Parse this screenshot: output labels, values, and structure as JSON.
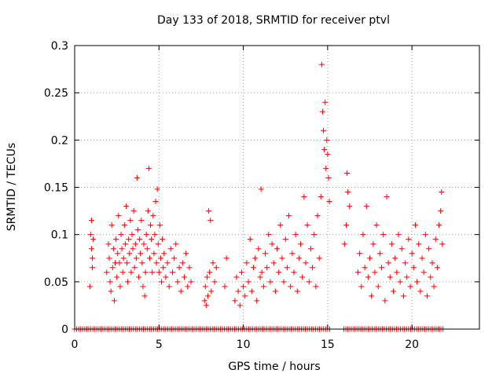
{
  "chart_data": {
    "type": "scatter",
    "title": "Day 133 of 2018, SRMTID for receiver ptvl",
    "xlabel": "GPS time / hours",
    "ylabel": "SRMTID / TECUs",
    "xlim": [
      0,
      24
    ],
    "ylim": [
      0,
      0.3
    ],
    "xticks": [
      0,
      5,
      10,
      15,
      20
    ],
    "xtick_labels": [
      "0",
      "5",
      "10",
      "15",
      "20"
    ],
    "yticks": [
      0,
      0.05,
      0.1,
      0.15,
      0.2,
      0.25,
      0.3
    ],
    "ytick_labels": [
      "0",
      "0.05",
      "0.1",
      "0.15",
      "0.2",
      "0.25",
      "0.3"
    ],
    "grid": true,
    "marker": "+",
    "color": "#ff0000",
    "series": [
      {
        "name": "SRMTID",
        "points": [
          [
            0.9,
            0.045
          ],
          [
            0.95,
            0.1
          ],
          [
            1.0,
            0.115
          ],
          [
            1.0,
            0.085
          ],
          [
            1.05,
            0.075
          ],
          [
            1.05,
            0.065
          ],
          [
            1.1,
            0.095
          ],
          [
            1.9,
            0.06
          ],
          [
            2.0,
            0.09
          ],
          [
            2.05,
            0.075
          ],
          [
            2.1,
            0.05
          ],
          [
            2.15,
            0.04
          ],
          [
            2.2,
            0.11
          ],
          [
            2.25,
            0.065
          ],
          [
            2.3,
            0.085
          ],
          [
            2.35,
            0.03
          ],
          [
            2.4,
            0.07
          ],
          [
            2.45,
            0.095
          ],
          [
            2.5,
            0.055
          ],
          [
            2.55,
            0.08
          ],
          [
            2.6,
            0.12
          ],
          [
            2.65,
            0.07
          ],
          [
            2.7,
            0.045
          ],
          [
            2.75,
            0.1
          ],
          [
            2.8,
            0.085
          ],
          [
            2.85,
            0.06
          ],
          [
            2.9,
            0.075
          ],
          [
            2.95,
            0.11
          ],
          [
            3.0,
            0.09
          ],
          [
            3.05,
            0.13
          ],
          [
            3.1,
            0.07
          ],
          [
            3.15,
            0.05
          ],
          [
            3.2,
            0.095
          ],
          [
            3.25,
            0.08
          ],
          [
            3.3,
            0.115
          ],
          [
            3.35,
            0.06
          ],
          [
            3.4,
            0.1
          ],
          [
            3.45,
            0.085
          ],
          [
            3.5,
            0.125
          ],
          [
            3.55,
            0.065
          ],
          [
            3.6,
            0.09
          ],
          [
            3.65,
            0.075
          ],
          [
            3.7,
            0.16
          ],
          [
            3.75,
            0.105
          ],
          [
            3.8,
            0.055
          ],
          [
            3.85,
            0.095
          ],
          [
            3.9,
            0.08
          ],
          [
            3.95,
            0.115
          ],
          [
            4.0,
            0.07
          ],
          [
            4.05,
            0.045
          ],
          [
            4.1,
            0.09
          ],
          [
            4.15,
            0.035
          ],
          [
            4.2,
            0.06
          ],
          [
            4.25,
            0.1
          ],
          [
            4.3,
            0.085
          ],
          [
            4.35,
            0.125
          ],
          [
            4.4,
            0.17
          ],
          [
            4.45,
            0.075
          ],
          [
            4.5,
            0.11
          ],
          [
            4.55,
            0.095
          ],
          [
            4.6,
            0.06
          ],
          [
            4.65,
            0.12
          ],
          [
            4.7,
            0.08
          ],
          [
            4.75,
            0.1
          ],
          [
            4.8,
            0.135
          ],
          [
            4.85,
            0.07
          ],
          [
            4.9,
            0.148
          ],
          [
            4.95,
            0.09
          ],
          [
            5.0,
            0.06
          ],
          [
            5.05,
            0.11
          ],
          [
            5.1,
            0.075
          ],
          [
            5.15,
            0.05
          ],
          [
            5.2,
            0.095
          ],
          [
            5.25,
            0.065
          ],
          [
            5.3,
            0.08
          ],
          [
            5.4,
            0.055
          ],
          [
            5.5,
            0.07
          ],
          [
            5.6,
            0.045
          ],
          [
            5.7,
            0.085
          ],
          [
            5.8,
            0.06
          ],
          [
            5.9,
            0.075
          ],
          [
            6.0,
            0.09
          ],
          [
            6.1,
            0.05
          ],
          [
            6.2,
            0.065
          ],
          [
            6.3,
            0.04
          ],
          [
            6.4,
            0.07
          ],
          [
            6.5,
            0.055
          ],
          [
            6.6,
            0.08
          ],
          [
            6.7,
            0.045
          ],
          [
            6.8,
            0.065
          ],
          [
            6.9,
            0.05
          ],
          [
            7.7,
            0.03
          ],
          [
            7.75,
            0.045
          ],
          [
            7.8,
            0.025
          ],
          [
            7.85,
            0.055
          ],
          [
            7.9,
            0.035
          ],
          [
            7.95,
            0.125
          ],
          [
            8.0,
            0.06
          ],
          [
            8.05,
            0.115
          ],
          [
            8.1,
            0.04
          ],
          [
            8.2,
            0.07
          ],
          [
            8.3,
            0.05
          ],
          [
            8.4,
            0.065
          ],
          [
            8.9,
            0.045
          ],
          [
            9.0,
            0.075
          ],
          [
            9.5,
            0.03
          ],
          [
            9.6,
            0.055
          ],
          [
            9.7,
            0.04
          ],
          [
            9.8,
            0.025
          ],
          [
            9.9,
            0.06
          ],
          [
            10.0,
            0.045
          ],
          [
            10.1,
            0.035
          ],
          [
            10.2,
            0.07
          ],
          [
            10.3,
            0.05
          ],
          [
            10.4,
            0.095
          ],
          [
            10.5,
            0.04
          ],
          [
            10.6,
            0.065
          ],
          [
            10.7,
            0.075
          ],
          [
            10.8,
            0.03
          ],
          [
            10.9,
            0.085
          ],
          [
            11.0,
            0.055
          ],
          [
            11.05,
            0.148
          ],
          [
            11.1,
            0.06
          ],
          [
            11.2,
            0.045
          ],
          [
            11.3,
            0.08
          ],
          [
            11.4,
            0.065
          ],
          [
            11.5,
            0.1
          ],
          [
            11.6,
            0.05
          ],
          [
            11.7,
            0.09
          ],
          [
            11.8,
            0.07
          ],
          [
            11.9,
            0.04
          ],
          [
            12.0,
            0.085
          ],
          [
            12.1,
            0.06
          ],
          [
            12.2,
            0.11
          ],
          [
            12.3,
            0.075
          ],
          [
            12.4,
            0.05
          ],
          [
            12.5,
            0.095
          ],
          [
            12.6,
            0.065
          ],
          [
            12.7,
            0.12
          ],
          [
            12.8,
            0.045
          ],
          [
            12.9,
            0.08
          ],
          [
            13.0,
            0.06
          ],
          [
            13.1,
            0.1
          ],
          [
            13.2,
            0.04
          ],
          [
            13.3,
            0.075
          ],
          [
            13.4,
            0.09
          ],
          [
            13.5,
            0.055
          ],
          [
            13.6,
            0.14
          ],
          [
            13.7,
            0.07
          ],
          [
            13.8,
            0.11
          ],
          [
            13.9,
            0.05
          ],
          [
            14.0,
            0.085
          ],
          [
            14.1,
            0.065
          ],
          [
            14.2,
            0.1
          ],
          [
            14.3,
            0.045
          ],
          [
            14.4,
            0.12
          ],
          [
            14.5,
            0.075
          ],
          [
            14.6,
            0.14
          ],
          [
            14.65,
            0.28
          ],
          [
            14.7,
            0.23
          ],
          [
            14.75,
            0.21
          ],
          [
            14.8,
            0.19
          ],
          [
            14.85,
            0.24
          ],
          [
            14.9,
            0.17
          ],
          [
            14.95,
            0.2
          ],
          [
            15.0,
            0.185
          ],
          [
            15.05,
            0.16
          ],
          [
            15.1,
            0.135
          ],
          [
            16.0,
            0.09
          ],
          [
            16.1,
            0.11
          ],
          [
            16.15,
            0.165
          ],
          [
            16.2,
            0.145
          ],
          [
            16.3,
            0.13
          ],
          [
            16.8,
            0.06
          ],
          [
            16.9,
            0.08
          ],
          [
            17.0,
            0.045
          ],
          [
            17.1,
            0.1
          ],
          [
            17.2,
            0.065
          ],
          [
            17.3,
            0.13
          ],
          [
            17.4,
            0.055
          ],
          [
            17.5,
            0.075
          ],
          [
            17.6,
            0.035
          ],
          [
            17.7,
            0.09
          ],
          [
            17.8,
            0.06
          ],
          [
            17.9,
            0.11
          ],
          [
            18.0,
            0.045
          ],
          [
            18.1,
            0.08
          ],
          [
            18.2,
            0.065
          ],
          [
            18.3,
            0.1
          ],
          [
            18.4,
            0.03
          ],
          [
            18.5,
            0.14
          ],
          [
            18.6,
            0.07
          ],
          [
            18.7,
            0.055
          ],
          [
            18.8,
            0.09
          ],
          [
            18.9,
            0.04
          ],
          [
            19.0,
            0.075
          ],
          [
            19.1,
            0.06
          ],
          [
            19.2,
            0.1
          ],
          [
            19.3,
            0.05
          ],
          [
            19.4,
            0.085
          ],
          [
            19.5,
            0.035
          ],
          [
            19.6,
            0.07
          ],
          [
            19.7,
            0.055
          ],
          [
            19.8,
            0.095
          ],
          [
            19.9,
            0.045
          ],
          [
            20.0,
            0.08
          ],
          [
            20.1,
            0.065
          ],
          [
            20.2,
            0.11
          ],
          [
            20.3,
            0.05
          ],
          [
            20.4,
            0.09
          ],
          [
            20.5,
            0.04
          ],
          [
            20.6,
            0.075
          ],
          [
            20.7,
            0.06
          ],
          [
            20.8,
            0.1
          ],
          [
            20.9,
            0.035
          ],
          [
            21.0,
            0.085
          ],
          [
            21.1,
            0.055
          ],
          [
            21.2,
            0.07
          ],
          [
            21.3,
            0.045
          ],
          [
            21.4,
            0.095
          ],
          [
            21.5,
            0.065
          ],
          [
            21.6,
            0.11
          ],
          [
            21.7,
            0.125
          ],
          [
            21.75,
            0.145
          ],
          [
            21.8,
            0.09
          ]
        ]
      }
    ]
  }
}
